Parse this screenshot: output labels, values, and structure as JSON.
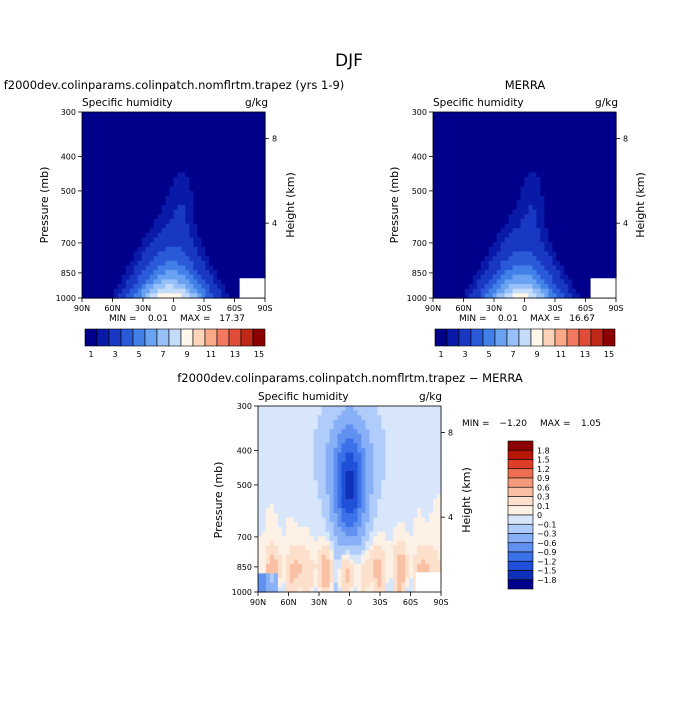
{
  "figure": {
    "title": "DJF"
  },
  "colors": {
    "seq": [
      "#00008b",
      "#0a1aa8",
      "#1838c4",
      "#2a5ad8",
      "#4080e8",
      "#6aa2f2",
      "#98c0f8",
      "#c4dcfa",
      "#fff6ea",
      "#fdd4b8",
      "#f9a888",
      "#f27860",
      "#e04c38",
      "#c02818",
      "#8b0000"
    ],
    "div": [
      "#00008b",
      "#1030b8",
      "#2050d8",
      "#3a70e8",
      "#6090f0",
      "#88b0f6",
      "#b0ccfa",
      "#d8e6fc",
      "#fdf0e4",
      "#fde0cc",
      "#f9c0a4",
      "#f59a7c",
      "#ee6e52",
      "#dd3e28",
      "#b81608",
      "#8b0000"
    ]
  },
  "chart_data": [
    {
      "type": "heatmap",
      "subtitle": "f2000dev.colinparams.colinpatch.nomflrtm.trapez (yrs 1-9)",
      "variable": "Specific humidity",
      "units": "g/kg",
      "ylabel": "Pressure (mb)",
      "ylabel_right": "Height (km)",
      "x_ticks": [
        "90N",
        "60N",
        "30N",
        "0",
        "30S",
        "60S",
        "90S"
      ],
      "y_ticks": [
        "300",
        "400",
        "500",
        "700",
        "850",
        "1000"
      ],
      "right_ticks": [
        "8",
        "4"
      ],
      "xlim": [
        90,
        -90
      ],
      "ylim": [
        1000,
        300
      ],
      "min_label": "MIN =",
      "min_value": "0.01",
      "max_label": "MAX =",
      "max_value": "17.37",
      "peak": 17.37,
      "colorbar_labels": [
        "1",
        "3",
        "5",
        "7",
        "9",
        "11",
        "13",
        "15"
      ]
    },
    {
      "type": "heatmap",
      "subtitle": "MERRA",
      "variable": "Specific humidity",
      "units": "g/kg",
      "ylabel": "Pressure (mb)",
      "ylabel_right": "Height (km)",
      "x_ticks": [
        "90N",
        "60N",
        "30N",
        "0",
        "30S",
        "60S",
        "90S"
      ],
      "y_ticks": [
        "300",
        "400",
        "500",
        "700",
        "850",
        "1000"
      ],
      "right_ticks": [
        "8",
        "4"
      ],
      "xlim": [
        90,
        -90
      ],
      "ylim": [
        1000,
        300
      ],
      "min_label": "MIN =",
      "min_value": "0.01",
      "max_label": "MAX =",
      "max_value": "16.67",
      "peak": 16.67,
      "colorbar_labels": [
        "1",
        "3",
        "5",
        "7",
        "9",
        "11",
        "13",
        "15"
      ]
    },
    {
      "type": "heatmap",
      "subtitle": "f2000dev.colinparams.colinpatch.nomflrtm.trapez − MERRA",
      "variable": "Specific humidity",
      "units": "g/kg",
      "ylabel": "Pressure (mb)",
      "ylabel_right": "Height (km)",
      "x_ticks": [
        "90N",
        "60N",
        "30N",
        "0",
        "30S",
        "60S",
        "90S"
      ],
      "y_ticks": [
        "300",
        "400",
        "500",
        "700",
        "850",
        "1000"
      ],
      "right_ticks": [
        "8",
        "4"
      ],
      "xlim": [
        90,
        -90
      ],
      "ylim": [
        1000,
        300
      ],
      "min_label": "MIN =",
      "min_value": "−1.20",
      "max_label": "MAX =",
      "max_value": "1.05",
      "colorbar_labels": [
        "1.8",
        "1.5",
        "1.2",
        "0.9",
        "0.6",
        "0.3",
        "0.1",
        "0",
        "−0.1",
        "−0.3",
        "−0.6",
        "−0.9",
        "−1.2",
        "−1.5",
        "−1.8"
      ]
    }
  ]
}
